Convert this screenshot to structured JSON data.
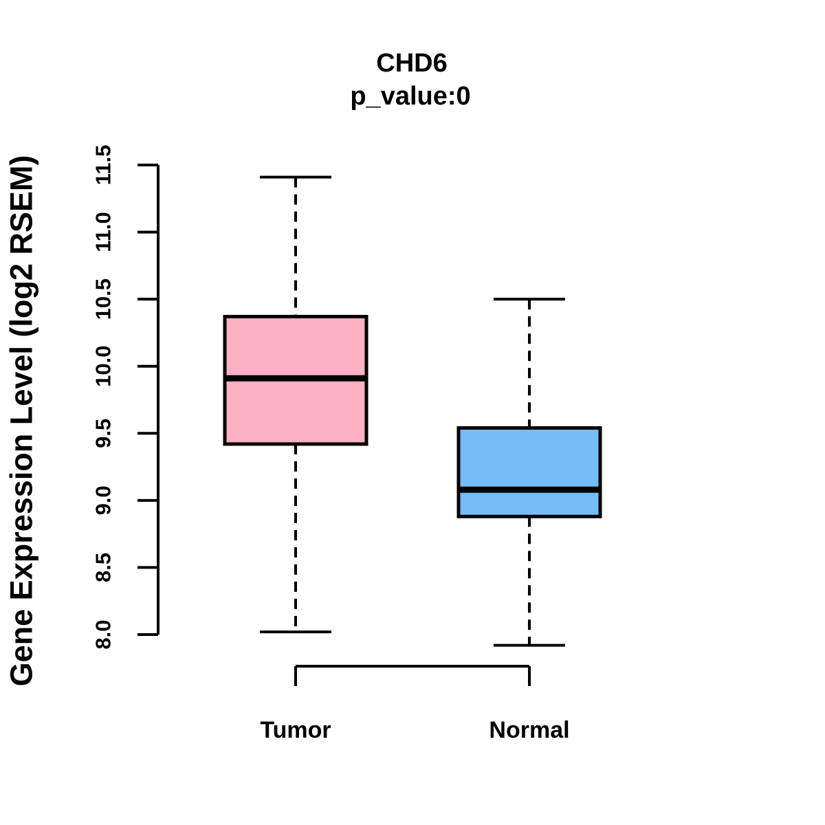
{
  "title": "CHD6",
  "subtitle": "p_value:0",
  "colors": {
    "tumor_fill": "#FCB0C3",
    "normal_fill": "#74BDF7",
    "stroke": "#000000",
    "background": "#FFFFFF"
  },
  "chart_data": {
    "type": "boxplot",
    "title": "CHD6",
    "subtitle": "p_value:0",
    "ylabel": "Gene Expression Level (log2 RSEM)",
    "xlabel": "",
    "ylim": [
      8.0,
      11.5
    ],
    "yticks": [
      "8.0",
      "8.5",
      "9.0",
      "9.5",
      "10.0",
      "10.5",
      "11.0",
      "11.5"
    ],
    "grid": false,
    "legend": "none",
    "categories": [
      "Tumor",
      "Normal"
    ],
    "series": [
      {
        "name": "Tumor",
        "lower_whisker": 8.02,
        "q1": 9.42,
        "median": 9.91,
        "q3": 10.37,
        "upper_whisker": 11.41,
        "fill": "#FCB0C3"
      },
      {
        "name": "Normal",
        "lower_whisker": 7.92,
        "q1": 8.88,
        "median": 9.08,
        "q3": 9.54,
        "upper_whisker": 10.5,
        "fill": "#74BDF7"
      }
    ]
  }
}
